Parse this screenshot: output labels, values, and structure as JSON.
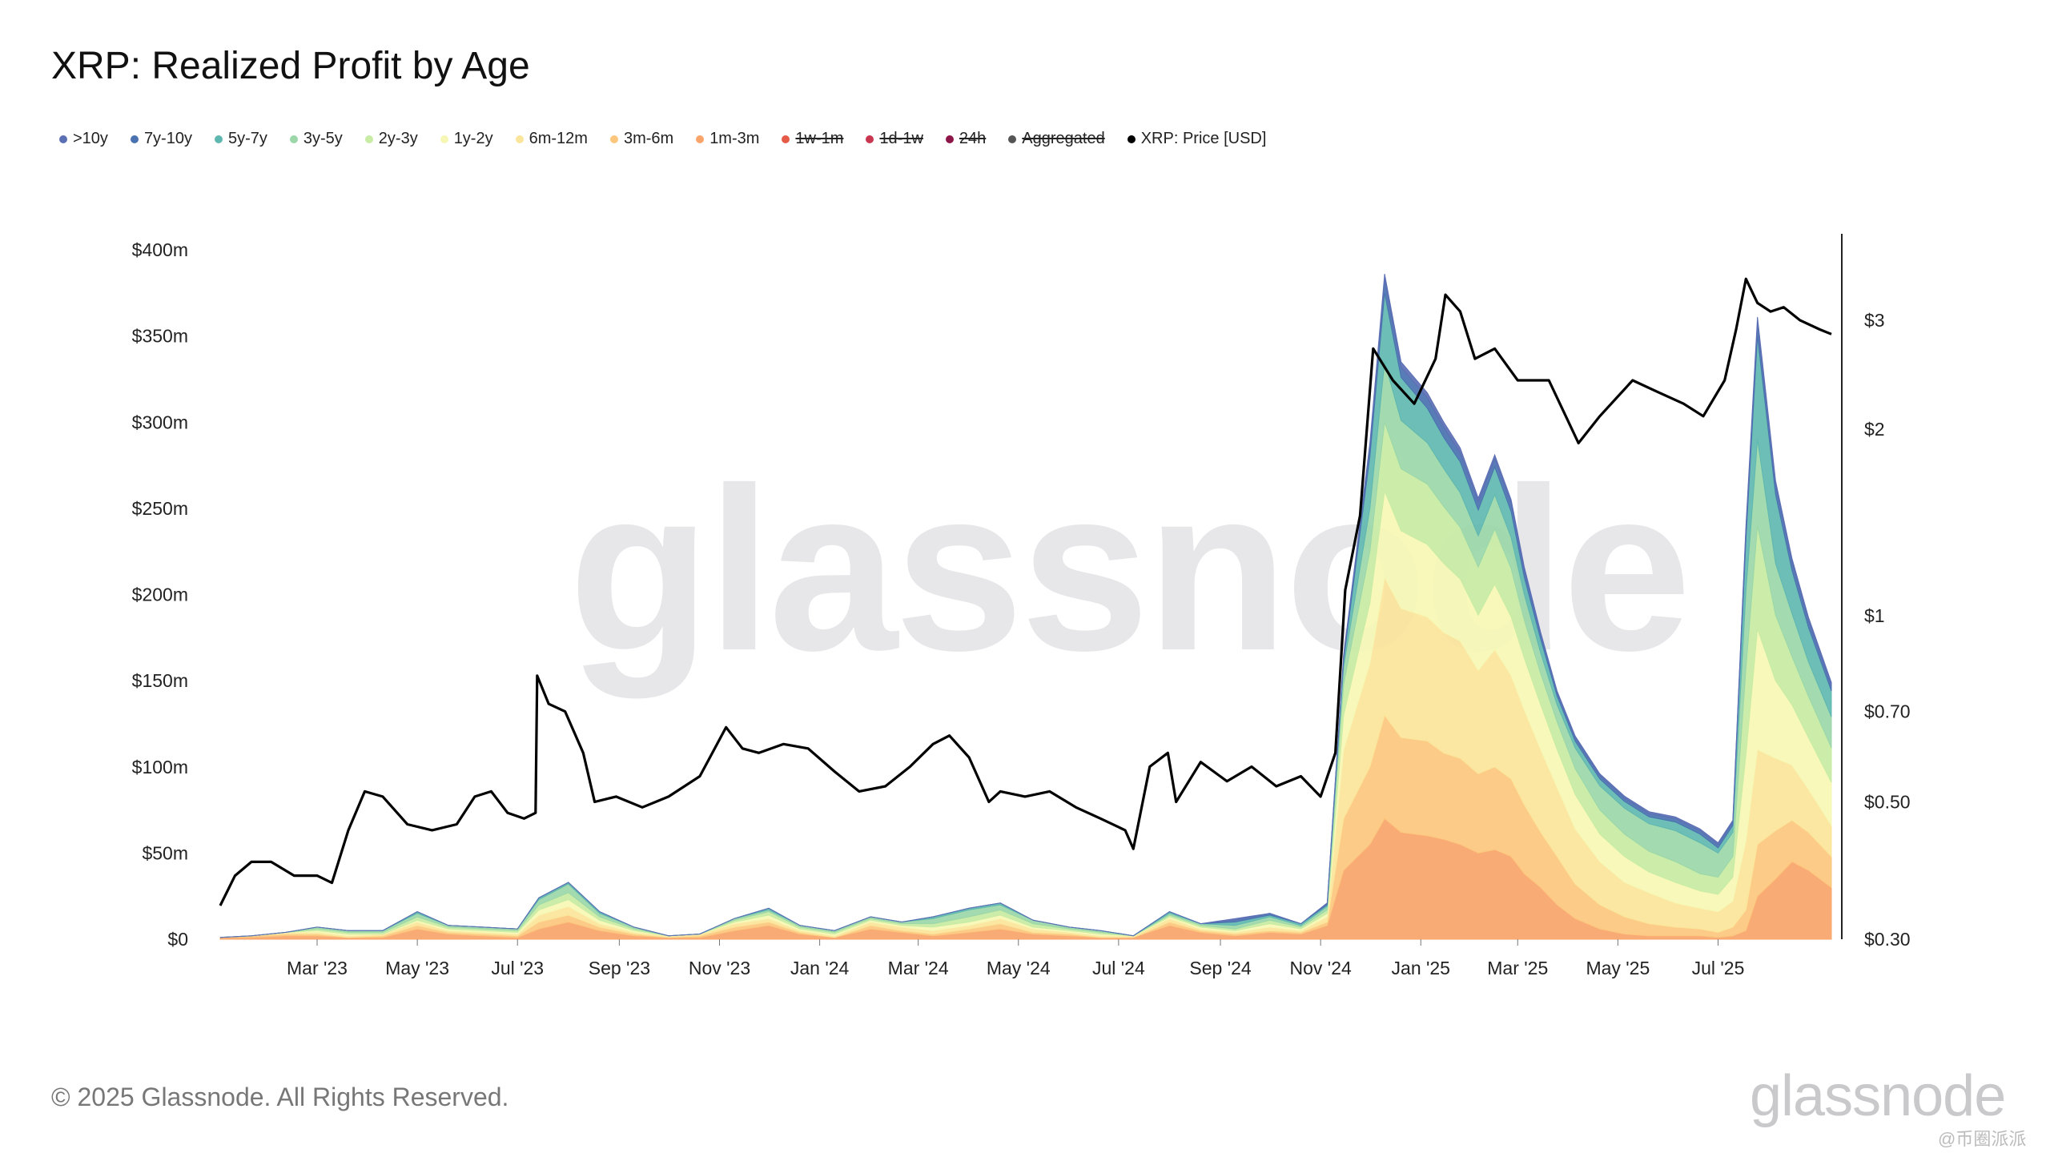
{
  "title": "XRP: Realized Profit by Age",
  "legend": [
    {
      "label": ">10y",
      "color": "#5b6fb4",
      "enabled": true
    },
    {
      "label": "7y-10y",
      "color": "#4a72b0",
      "enabled": true
    },
    {
      "label": "5y-7y",
      "color": "#5fb8b0",
      "enabled": true
    },
    {
      "label": "3y-5y",
      "color": "#9bd7a8",
      "enabled": true
    },
    {
      "label": "2y-3y",
      "color": "#c8eca3",
      "enabled": true
    },
    {
      "label": "1y-2y",
      "color": "#f6f7b4",
      "enabled": true
    },
    {
      "label": "6m-12m",
      "color": "#fbe59a",
      "enabled": true
    },
    {
      "label": "3m-6m",
      "color": "#fcc77d",
      "enabled": true
    },
    {
      "label": "1m-3m",
      "color": "#f9a46a",
      "enabled": true
    },
    {
      "label": "1w-1m",
      "color": "#e55b47",
      "enabled": false
    },
    {
      "label": "1d-1w",
      "color": "#c8374f",
      "enabled": false
    },
    {
      "label": "24h",
      "color": "#8e1547",
      "enabled": false
    },
    {
      "label": "Aggregated",
      "color": "#555555",
      "enabled": false
    },
    {
      "label": "XRP: Price [USD]",
      "color": "#000000",
      "enabled": true
    }
  ],
  "watermark": "glassnode",
  "copyright": "© 2025 Glassnode. All Rights Reserved.",
  "brand": "glassnode",
  "corner_mark": "@币圈派派",
  "chart_data": {
    "type": "area",
    "stacked": true,
    "x_ticks": [
      "Mar '23",
      "May '23",
      "Jul '23",
      "Sep '23",
      "Nov '23",
      "Jan '24",
      "Mar '24",
      "May '24",
      "Jul '24",
      "Sep '24",
      "Nov '24",
      "Jan '25",
      "Mar '25",
      "May '25",
      "Jul '25"
    ],
    "x_range": [
      "2023-01-01",
      "2025-09-08"
    ],
    "y_left": {
      "ticks": [
        "$0",
        "$50m",
        "$100m",
        "$150m",
        "$200m",
        "$250m",
        "$300m",
        "$350m",
        "$400m"
      ],
      "range": [
        0,
        400
      ],
      "unit": "USD millions"
    },
    "y_right": {
      "ticks": [
        "$0.30",
        "$0.50",
        "$0.70",
        "$1",
        "$2",
        "$3"
      ],
      "tick_values": [
        0.3,
        0.5,
        0.7,
        1,
        2,
        3
      ],
      "scale": "log",
      "range": [
        0.3,
        3.9
      ]
    },
    "x": [
      "2023-01-01",
      "2023-01-20",
      "2023-02-10",
      "2023-03-01",
      "2023-03-20",
      "2023-04-10",
      "2023-05-01",
      "2023-05-20",
      "2023-06-10",
      "2023-07-01",
      "2023-07-14",
      "2023-08-01",
      "2023-08-20",
      "2023-09-10",
      "2023-10-01",
      "2023-10-20",
      "2023-11-10",
      "2023-12-01",
      "2023-12-20",
      "2024-01-10",
      "2024-02-01",
      "2024-02-20",
      "2024-03-10",
      "2024-04-01",
      "2024-04-20",
      "2024-05-10",
      "2024-06-01",
      "2024-06-20",
      "2024-07-10",
      "2024-08-01",
      "2024-08-20",
      "2024-09-10",
      "2024-10-01",
      "2024-10-20",
      "2024-11-05",
      "2024-11-15",
      "2024-12-01",
      "2024-12-10",
      "2024-12-20",
      "2025-01-05",
      "2025-01-15",
      "2025-01-25",
      "2025-02-05",
      "2025-02-15",
      "2025-02-25",
      "2025-03-05",
      "2025-03-15",
      "2025-03-25",
      "2025-04-05",
      "2025-04-20",
      "2025-05-05",
      "2025-05-20",
      "2025-06-05",
      "2025-06-20",
      "2025-07-01",
      "2025-07-10",
      "2025-07-18",
      "2025-07-25",
      "2025-08-05",
      "2025-08-15",
      "2025-08-25",
      "2025-09-08"
    ],
    "series": [
      {
        "name": "1m-3m",
        "color": "#f9a46a",
        "values": [
          1,
          1,
          2,
          2,
          1,
          1,
          6,
          3,
          2,
          1,
          6,
          10,
          5,
          2,
          1,
          1,
          5,
          8,
          3,
          1,
          6,
          4,
          2,
          4,
          6,
          3,
          2,
          1,
          1,
          8,
          4,
          2,
          4,
          3,
          8,
          40,
          55,
          70,
          62,
          60,
          58,
          55,
          50,
          52,
          48,
          38,
          30,
          20,
          12,
          6,
          3,
          2,
          2,
          2,
          1,
          2,
          5,
          25,
          35,
          45,
          40,
          30
        ]
      },
      {
        "name": "3m-6m",
        "color": "#fcc77d",
        "values": [
          0,
          1,
          1,
          1,
          0,
          1,
          2,
          1,
          1,
          1,
          4,
          4,
          2,
          1,
          0,
          1,
          2,
          2,
          1,
          0,
          2,
          1,
          1,
          2,
          3,
          1,
          1,
          0,
          0,
          2,
          1,
          1,
          1,
          1,
          2,
          30,
          45,
          60,
          55,
          55,
          50,
          50,
          46,
          48,
          45,
          40,
          32,
          28,
          20,
          14,
          10,
          7,
          5,
          4,
          3,
          5,
          12,
          30,
          28,
          24,
          22,
          18
        ]
      },
      {
        "name": "6m-12m",
        "color": "#fbe59a",
        "values": [
          0,
          0,
          1,
          1,
          1,
          1,
          2,
          1,
          1,
          1,
          4,
          5,
          2,
          1,
          1,
          1,
          2,
          2,
          1,
          1,
          2,
          2,
          2,
          2,
          3,
          2,
          1,
          1,
          1,
          2,
          1,
          1,
          2,
          1,
          3,
          40,
          60,
          80,
          75,
          72,
          70,
          68,
          60,
          68,
          60,
          55,
          48,
          40,
          32,
          25,
          20,
          18,
          14,
          12,
          12,
          15,
          40,
          55,
          42,
          32,
          25,
          18
        ]
      },
      {
        "name": "1y-2y",
        "color": "#f6f7b4",
        "values": [
          0,
          0,
          0,
          1,
          1,
          0,
          1,
          1,
          1,
          1,
          3,
          4,
          2,
          1,
          0,
          0,
          1,
          2,
          1,
          1,
          1,
          1,
          2,
          2,
          2,
          1,
          1,
          1,
          0,
          1,
          1,
          1,
          2,
          1,
          2,
          20,
          35,
          50,
          45,
          42,
          40,
          36,
          32,
          38,
          34,
          30,
          26,
          22,
          20,
          16,
          15,
          12,
          12,
          10,
          10,
          14,
          50,
          70,
          45,
          35,
          30,
          25
        ]
      },
      {
        "name": "2y-3y",
        "color": "#c8eca3",
        "values": [
          0,
          0,
          0,
          1,
          1,
          1,
          2,
          1,
          1,
          1,
          3,
          4,
          2,
          1,
          0,
          0,
          1,
          2,
          1,
          1,
          1,
          1,
          2,
          3,
          3,
          2,
          1,
          1,
          0,
          1,
          1,
          1,
          2,
          1,
          2,
          18,
          30,
          40,
          36,
          35,
          33,
          30,
          28,
          32,
          28,
          22,
          18,
          16,
          15,
          14,
          13,
          12,
          12,
          10,
          10,
          12,
          50,
          60,
          38,
          28,
          24,
          20
        ]
      },
      {
        "name": "3y-5y",
        "color": "#9bd7a8",
        "values": [
          0,
          0,
          0,
          1,
          1,
          1,
          2,
          1,
          1,
          1,
          3,
          5,
          2,
          1,
          0,
          0,
          1,
          1,
          1,
          1,
          1,
          1,
          3,
          4,
          3,
          2,
          1,
          1,
          0,
          1,
          1,
          2,
          2,
          1,
          2,
          10,
          25,
          35,
          28,
          24,
          22,
          20,
          18,
          20,
          18,
          15,
          12,
          10,
          12,
          14,
          15,
          16,
          18,
          18,
          14,
          14,
          45,
          50,
          30,
          25,
          20,
          18
        ]
      },
      {
        "name": "5y-7y",
        "color": "#5fb8b0",
        "values": [
          0,
          0,
          0,
          0,
          0,
          0,
          1,
          0,
          0,
          0,
          1,
          1,
          1,
          0,
          0,
          0,
          0,
          1,
          0,
          0,
          0,
          0,
          1,
          1,
          1,
          0,
          0,
          0,
          0,
          1,
          0,
          2,
          1,
          1,
          1,
          4,
          30,
          40,
          25,
          20,
          18,
          18,
          15,
          16,
          15,
          10,
          8,
          5,
          4,
          4,
          4,
          4,
          5,
          5,
          3,
          4,
          30,
          60,
          40,
          25,
          20,
          15
        ]
      },
      {
        "name": "7y-10y",
        "color": "#4a72b0",
        "values": [
          0,
          0,
          0,
          0,
          0,
          0,
          0,
          0,
          0,
          0,
          0,
          0,
          0,
          0,
          0,
          0,
          0,
          0,
          0,
          0,
          0,
          0,
          0,
          0,
          0,
          0,
          0,
          0,
          0,
          0,
          0,
          1,
          1,
          0,
          1,
          2,
          6,
          8,
          6,
          6,
          6,
          5,
          5,
          5,
          5,
          4,
          3,
          2,
          2,
          2,
          2,
          2,
          2,
          2,
          2,
          2,
          6,
          8,
          6,
          5,
          4,
          3
        ]
      },
      {
        "name": ">10y",
        "color": "#5b6fb4",
        "values": [
          0,
          0,
          0,
          0,
          0,
          0,
          0,
          0,
          0,
          0,
          0,
          0,
          0,
          0,
          0,
          0,
          0,
          0,
          0,
          0,
          0,
          0,
          0,
          0,
          0,
          0,
          0,
          0,
          0,
          0,
          0,
          1,
          0,
          0,
          0,
          1,
          2,
          3,
          3,
          3,
          3,
          3,
          2,
          2,
          2,
          2,
          1,
          1,
          1,
          1,
          1,
          1,
          1,
          1,
          1,
          1,
          2,
          3,
          2,
          2,
          2,
          2
        ]
      }
    ],
    "price": {
      "name": "XRP: Price [USD]",
      "color": "#000000",
      "dates": [
        "2023-01-01",
        "2023-01-10",
        "2023-01-20",
        "2023-02-01",
        "2023-02-15",
        "2023-03-01",
        "2023-03-10",
        "2023-03-20",
        "2023-03-30",
        "2023-04-10",
        "2023-04-25",
        "2023-05-10",
        "2023-05-25",
        "2023-06-05",
        "2023-06-15",
        "2023-06-25",
        "2023-07-05",
        "2023-07-12",
        "2023-07-13",
        "2023-07-20",
        "2023-07-30",
        "2023-08-10",
        "2023-08-17",
        "2023-08-30",
        "2023-09-15",
        "2023-10-01",
        "2023-10-20",
        "2023-11-05",
        "2023-11-15",
        "2023-11-25",
        "2023-12-10",
        "2023-12-25",
        "2024-01-10",
        "2024-01-25",
        "2024-02-10",
        "2024-02-25",
        "2024-03-10",
        "2024-03-20",
        "2024-04-01",
        "2024-04-13",
        "2024-04-20",
        "2024-05-05",
        "2024-05-20",
        "2024-06-05",
        "2024-06-20",
        "2024-07-05",
        "2024-07-10",
        "2024-07-20",
        "2024-07-31",
        "2024-08-05",
        "2024-08-20",
        "2024-09-05",
        "2024-09-20",
        "2024-10-05",
        "2024-10-20",
        "2024-11-01",
        "2024-11-10",
        "2024-11-16",
        "2024-11-25",
        "2024-12-03",
        "2024-12-15",
        "2024-12-28",
        "2025-01-10",
        "2025-01-16",
        "2025-01-25",
        "2025-02-03",
        "2025-02-15",
        "2025-03-01",
        "2025-03-10",
        "2025-03-20",
        "2025-04-07",
        "2025-04-20",
        "2025-05-10",
        "2025-05-25",
        "2025-06-10",
        "2025-06-22",
        "2025-07-05",
        "2025-07-12",
        "2025-07-18",
        "2025-07-25",
        "2025-08-02",
        "2025-08-10",
        "2025-08-20",
        "2025-09-01",
        "2025-09-08"
      ],
      "values": [
        0.34,
        0.38,
        0.4,
        0.4,
        0.38,
        0.38,
        0.37,
        0.45,
        0.52,
        0.51,
        0.46,
        0.45,
        0.46,
        0.51,
        0.52,
        0.48,
        0.47,
        0.48,
        0.8,
        0.72,
        0.7,
        0.6,
        0.5,
        0.51,
        0.49,
        0.51,
        0.55,
        0.66,
        0.61,
        0.6,
        0.62,
        0.61,
        0.56,
        0.52,
        0.53,
        0.57,
        0.62,
        0.64,
        0.59,
        0.5,
        0.52,
        0.51,
        0.52,
        0.49,
        0.47,
        0.45,
        0.42,
        0.57,
        0.6,
        0.5,
        0.58,
        0.54,
        0.57,
        0.53,
        0.55,
        0.51,
        0.6,
        1.1,
        1.45,
        2.7,
        2.4,
        2.2,
        2.6,
        3.3,
        3.1,
        2.6,
        2.7,
        2.4,
        2.4,
        2.4,
        1.9,
        2.1,
        2.4,
        2.3,
        2.2,
        2.1,
        2.4,
        2.9,
        3.5,
        3.2,
        3.1,
        3.15,
        3.0,
        2.9,
        2.85
      ]
    }
  }
}
